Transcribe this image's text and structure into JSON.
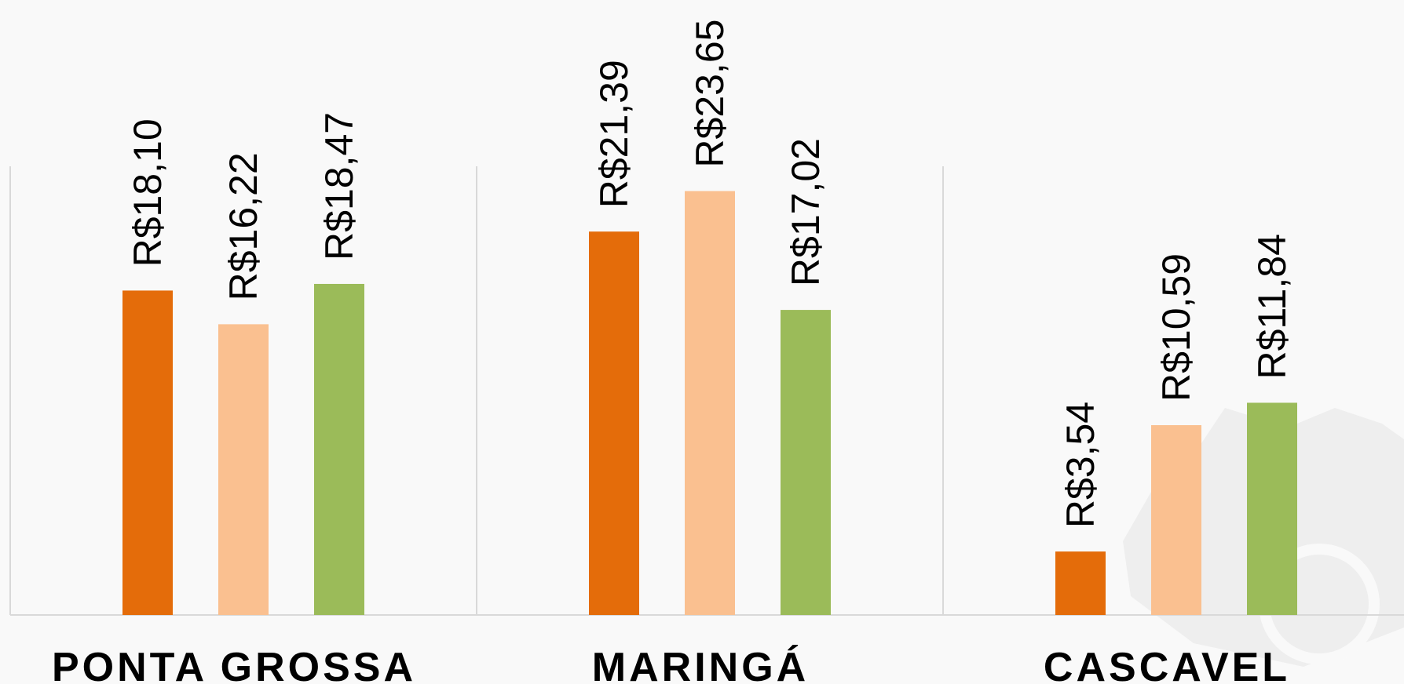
{
  "chart_data": {
    "type": "bar",
    "title": "",
    "xlabel": "",
    "ylabel": "",
    "ylim": [
      0,
      25
    ],
    "grid": false,
    "legend": "none",
    "categories": [
      "PONTA GROSSA",
      "MARINGÁ",
      "CASCAVEL"
    ],
    "series": [
      {
        "color": "#e46c0a",
        "values": [
          18.1,
          21.39,
          3.54
        ],
        "labels": [
          "R$18,10",
          "R$21,39",
          "R$3,54"
        ]
      },
      {
        "color": "#fac090",
        "values": [
          16.22,
          23.65,
          10.59
        ],
        "labels": [
          "R$16,22",
          "R$23,65",
          "R$10,59"
        ]
      },
      {
        "color": "#9bbb59",
        "values": [
          18.47,
          17.02,
          11.84
        ],
        "labels": [
          "R$18,47",
          "R$17,02",
          "R$11,84"
        ]
      }
    ]
  }
}
